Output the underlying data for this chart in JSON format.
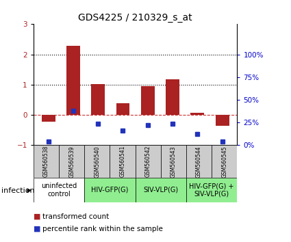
{
  "title": "GDS4225 / 210329_s_at",
  "samples": [
    "GSM560538",
    "GSM560539",
    "GSM560540",
    "GSM560541",
    "GSM560542",
    "GSM560543",
    "GSM560544",
    "GSM560545"
  ],
  "red_values": [
    -0.22,
    2.28,
    1.02,
    0.38,
    0.95,
    1.18,
    0.07,
    -0.35
  ],
  "blue_values": [
    -0.87,
    0.15,
    -0.28,
    -0.52,
    -0.33,
    -0.28,
    -0.62,
    -0.87
  ],
  "ylim": [
    -1,
    3
  ],
  "yticks_left": [
    -1,
    0,
    1,
    2,
    3
  ],
  "right_tick_labels": [
    "0%",
    "25%",
    "50%",
    "75%",
    "100%"
  ],
  "right_tick_positions": [
    -1,
    -0.25,
    0.5,
    1.25,
    2.0
  ],
  "red_color": "#aa2222",
  "blue_color": "#2233bb",
  "bar_width": 0.55,
  "groups": [
    {
      "label": "uninfected\ncontrol",
      "start": 0,
      "end": 2,
      "color": "#ffffff"
    },
    {
      "label": "HIV-GFP(G)",
      "start": 2,
      "end": 4,
      "color": "#90ee90"
    },
    {
      "label": "SIV-VLP(G)",
      "start": 4,
      "end": 6,
      "color": "#90ee90"
    },
    {
      "label": "HIV-GFP(G) +\nSIV-VLP(G)",
      "start": 6,
      "end": 8,
      "color": "#90ee90"
    }
  ],
  "dotted_lines": [
    1,
    2
  ],
  "infection_label": "infection",
  "legend_red": "transformed count",
  "legend_blue": "percentile rank within the sample",
  "background_color": "#ffffff",
  "right_axis_color": "#0000cc",
  "sample_box_color": "#cccccc",
  "title_fontsize": 10,
  "tick_fontsize": 7.5,
  "sample_fontsize": 5.5,
  "group_fontsize": 7,
  "legend_fontsize": 7.5,
  "infection_fontsize": 8
}
